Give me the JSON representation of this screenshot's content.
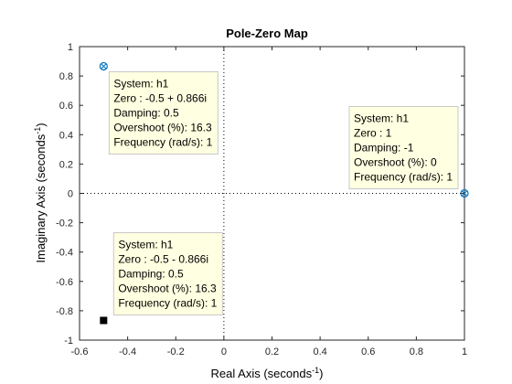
{
  "chart_data": {
    "type": "scatter",
    "title": "Pole-Zero Map",
    "xlabel": {
      "text": "Real Axis (seconds",
      "sup": "-1",
      "close": ")"
    },
    "ylabel": {
      "text": "Imaginary Axis (seconds",
      "sup": "-1",
      "close": ")"
    },
    "xlim": [
      -0.6,
      1
    ],
    "ylim": [
      -1,
      1
    ],
    "xticks": [
      -0.6,
      -0.4,
      -0.2,
      0,
      0.2,
      0.4,
      0.6,
      0.8,
      1
    ],
    "xtick_labels": [
      "-0.6",
      "-0.4",
      "-0.2",
      "0",
      "0.2",
      "0.4",
      "0.6",
      "0.8",
      "1"
    ],
    "yticks": [
      -1,
      -0.8,
      -0.6,
      -0.4,
      -0.2,
      0,
      0.2,
      0.4,
      0.6,
      0.8,
      1
    ],
    "ytick_labels": [
      "-1",
      "-0.8",
      "-0.6",
      "-0.4",
      "-0.2",
      "0",
      "0.2",
      "0.4",
      "0.6",
      "0.8",
      "1"
    ],
    "grid": false,
    "zero_lines": true,
    "points": [
      {
        "x": -0.5,
        "y": 0.866,
        "marker": "zero-selected",
        "color": "#0072bd"
      },
      {
        "x": 1,
        "y": 0,
        "marker": "zero-selected",
        "color": "#0072bd"
      },
      {
        "x": -0.5,
        "y": -0.866,
        "marker": "datatip-square",
        "color": "#000000"
      }
    ],
    "datatips": [
      {
        "target": 0,
        "position": "right-below",
        "lines": [
          "System: h1",
          "Zero : -0.5 + 0.866i",
          "Damping: 0.5",
          "Overshoot (%): 16.3",
          "Frequency (rad/s): 1"
        ]
      },
      {
        "target": 1,
        "position": "left-above",
        "lines": [
          "System: h1",
          "Zero : 1",
          "Damping: -1",
          "Overshoot (%): 0",
          "Frequency (rad/s): 1"
        ]
      },
      {
        "target": 2,
        "position": "right-above",
        "lines": [
          "System: h1",
          "Zero : -0.5 - 0.866i",
          "Damping: 0.5",
          "Overshoot (%): 16.3",
          "Frequency (rad/s): 1"
        ]
      }
    ],
    "colors": {
      "axes": "#262626",
      "datatip_bg": "#ffffe1",
      "datatip_border": "#c8c8c8",
      "marker": "#0072bd"
    }
  }
}
